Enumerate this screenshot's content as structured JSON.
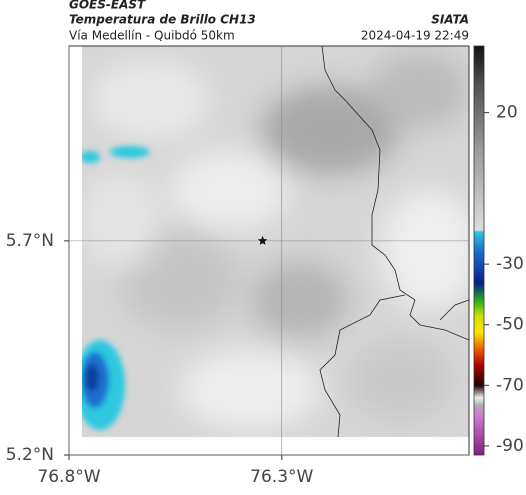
{
  "header": {
    "title": "GOES-EAST",
    "subtitle": "Temperatura de Brillo CH13",
    "source": "SIATA",
    "location": "Vía Medellín - Quibdó 50km",
    "datetime": "2024-04-19 22:49"
  },
  "map": {
    "xlim": [
      -76.8,
      -75.86
    ],
    "ylim": [
      5.2,
      6.155
    ],
    "xticks": [
      {
        "value": -76.8,
        "label": "76.8°W"
      },
      {
        "value": -76.3,
        "label": "76.3°W"
      }
    ],
    "yticks": [
      {
        "value": 5.2,
        "label": "5.2°N"
      },
      {
        "value": 5.7,
        "label": "5.7°N"
      }
    ],
    "grid": true,
    "marker": {
      "lon": -76.345,
      "lat": 5.7
    }
  },
  "colorbar": {
    "ylim": [
      -93,
      42
    ],
    "ticks": [
      20,
      -30,
      -50,
      -70,
      -90
    ]
  }
}
